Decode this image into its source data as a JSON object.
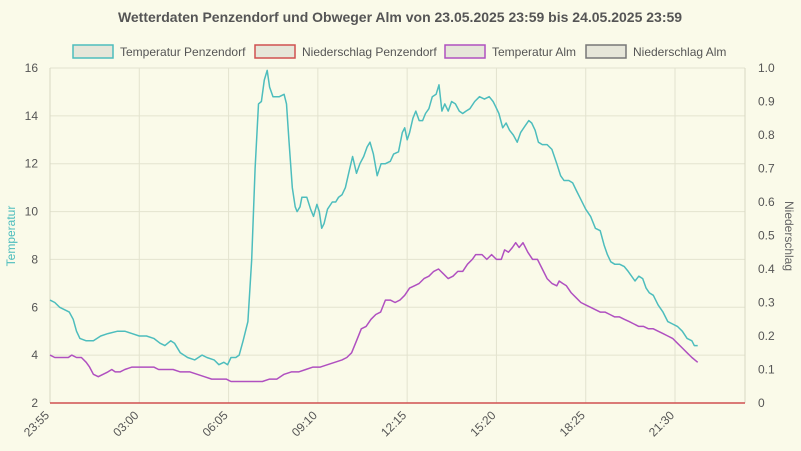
{
  "chart_data": {
    "type": "line",
    "title": "Wetterdaten Penzendorf und Obweger Alm von 23.05.2025 23:59 bis 24.05.2025 23:59",
    "ylabel_left": "Temperatur",
    "ylabel_right": "Niederschlag",
    "x_tick_labels": [
      "23:55",
      "03:00",
      "06:05",
      "09:10",
      "12:15",
      "15:20",
      "18:25",
      "21:30"
    ],
    "x_tick_minutes": [
      0,
      185,
      370,
      555,
      740,
      925,
      1110,
      1295
    ],
    "x_range_minutes": [
      0,
      1440
    ],
    "y_left_range": [
      2,
      16
    ],
    "y_left_ticks": [
      2,
      4,
      6,
      8,
      10,
      12,
      14,
      16
    ],
    "y_right_range": [
      0,
      1
    ],
    "y_right_ticks": [
      "0",
      "0.1",
      "0.2",
      "0.3",
      "0.4",
      "0.5",
      "0.6",
      "0.7",
      "0.8",
      "0.9",
      "1.0"
    ],
    "grid": true,
    "legend_position": "top",
    "series": [
      {
        "name": "Temperatur Penzendorf",
        "axis": "left",
        "color": "#4dbdbd",
        "fill": "#e6e6d9",
        "points": [
          [
            0,
            6.3
          ],
          [
            10,
            6.2
          ],
          [
            20,
            6.0
          ],
          [
            30,
            5.9
          ],
          [
            40,
            5.8
          ],
          [
            48,
            5.5
          ],
          [
            55,
            5.0
          ],
          [
            62,
            4.7
          ],
          [
            75,
            4.6
          ],
          [
            90,
            4.6
          ],
          [
            105,
            4.8
          ],
          [
            120,
            4.9
          ],
          [
            140,
            5.0
          ],
          [
            155,
            5.0
          ],
          [
            170,
            4.9
          ],
          [
            185,
            4.8
          ],
          [
            200,
            4.8
          ],
          [
            215,
            4.7
          ],
          [
            228,
            4.5
          ],
          [
            238,
            4.4
          ],
          [
            250,
            4.6
          ],
          [
            258,
            4.5
          ],
          [
            270,
            4.1
          ],
          [
            285,
            3.9
          ],
          [
            300,
            3.8
          ],
          [
            315,
            4.0
          ],
          [
            325,
            3.9
          ],
          [
            340,
            3.8
          ],
          [
            350,
            3.6
          ],
          [
            360,
            3.7
          ],
          [
            368,
            3.6
          ],
          [
            375,
            3.9
          ],
          [
            385,
            3.9
          ],
          [
            392,
            4.0
          ],
          [
            400,
            4.6
          ],
          [
            410,
            5.4
          ],
          [
            418,
            8.0
          ],
          [
            425,
            11.8
          ],
          [
            432,
            14.5
          ],
          [
            438,
            14.6
          ],
          [
            444,
            15.5
          ],
          [
            450,
            15.9
          ],
          [
            455,
            15.2
          ],
          [
            462,
            14.8
          ],
          [
            475,
            14.8
          ],
          [
            485,
            14.9
          ],
          [
            490,
            14.5
          ],
          [
            495,
            13.0
          ],
          [
            502,
            11.0
          ],
          [
            508,
            10.2
          ],
          [
            512,
            10.0
          ],
          [
            518,
            10.2
          ],
          [
            522,
            10.6
          ],
          [
            532,
            10.6
          ],
          [
            540,
            10.1
          ],
          [
            546,
            9.8
          ],
          [
            553,
            10.3
          ],
          [
            558,
            10.0
          ],
          [
            563,
            9.3
          ],
          [
            568,
            9.5
          ],
          [
            575,
            10.1
          ],
          [
            585,
            10.4
          ],
          [
            592,
            10.4
          ],
          [
            598,
            10.6
          ],
          [
            605,
            10.7
          ],
          [
            612,
            11.0
          ],
          [
            620,
            11.7
          ],
          [
            627,
            12.3
          ],
          [
            635,
            11.6
          ],
          [
            642,
            12.0
          ],
          [
            650,
            12.3
          ],
          [
            657,
            12.7
          ],
          [
            663,
            12.9
          ],
          [
            670,
            12.4
          ],
          [
            678,
            11.5
          ],
          [
            686,
            12.0
          ],
          [
            695,
            12.0
          ],
          [
            705,
            12.1
          ],
          [
            712,
            12.4
          ],
          [
            722,
            12.5
          ],
          [
            730,
            13.3
          ],
          [
            735,
            13.5
          ],
          [
            740,
            13.0
          ],
          [
            745,
            13.3
          ],
          [
            752,
            13.9
          ],
          [
            758,
            14.2
          ],
          [
            765,
            13.8
          ],
          [
            772,
            13.8
          ],
          [
            778,
            14.1
          ],
          [
            785,
            14.3
          ],
          [
            792,
            14.8
          ],
          [
            800,
            14.9
          ],
          [
            806,
            15.3
          ],
          [
            812,
            14.2
          ],
          [
            818,
            14.5
          ],
          [
            825,
            14.2
          ],
          [
            832,
            14.6
          ],
          [
            840,
            14.5
          ],
          [
            848,
            14.2
          ],
          [
            855,
            14.1
          ],
          [
            862,
            14.2
          ],
          [
            870,
            14.3
          ],
          [
            880,
            14.6
          ],
          [
            890,
            14.8
          ],
          [
            900,
            14.7
          ],
          [
            910,
            14.8
          ],
          [
            918,
            14.6
          ],
          [
            923,
            14.4
          ],
          [
            930,
            14.1
          ],
          [
            938,
            13.5
          ],
          [
            945,
            13.7
          ],
          [
            952,
            13.4
          ],
          [
            960,
            13.2
          ],
          [
            968,
            12.9
          ],
          [
            975,
            13.3
          ],
          [
            985,
            13.6
          ],
          [
            992,
            13.8
          ],
          [
            998,
            13.7
          ],
          [
            1005,
            13.4
          ],
          [
            1012,
            12.9
          ],
          [
            1020,
            12.8
          ],
          [
            1030,
            12.8
          ],
          [
            1040,
            12.6
          ],
          [
            1050,
            12.0
          ],
          [
            1058,
            11.5
          ],
          [
            1065,
            11.3
          ],
          [
            1075,
            11.3
          ],
          [
            1083,
            11.2
          ],
          [
            1090,
            10.9
          ],
          [
            1100,
            10.5
          ],
          [
            1110,
            10.1
          ],
          [
            1120,
            9.8
          ],
          [
            1130,
            9.3
          ],
          [
            1140,
            9.2
          ],
          [
            1148,
            8.6
          ],
          [
            1155,
            8.2
          ],
          [
            1162,
            7.9
          ],
          [
            1170,
            7.8
          ],
          [
            1180,
            7.8
          ],
          [
            1190,
            7.7
          ],
          [
            1198,
            7.5
          ],
          [
            1205,
            7.3
          ],
          [
            1212,
            7.1
          ],
          [
            1220,
            7.3
          ],
          [
            1228,
            7.2
          ],
          [
            1235,
            6.8
          ],
          [
            1242,
            6.6
          ],
          [
            1250,
            6.5
          ],
          [
            1260,
            6.1
          ],
          [
            1270,
            5.8
          ],
          [
            1280,
            5.4
          ],
          [
            1290,
            5.3
          ],
          [
            1300,
            5.2
          ],
          [
            1310,
            5.0
          ],
          [
            1320,
            4.7
          ],
          [
            1330,
            4.6
          ],
          [
            1335,
            4.4
          ],
          [
            1342,
            4.4
          ]
        ]
      },
      {
        "name": "Niederschlag Penzendorf",
        "axis": "right",
        "color": "#d05050",
        "fill": "#e6e6d9",
        "points": [
          [
            0,
            0
          ],
          [
            1440,
            0
          ]
        ]
      },
      {
        "name": "Temperatur Alm",
        "axis": "left",
        "color": "#b050c0",
        "fill": "#e6e6d9",
        "points": [
          [
            0,
            4.0
          ],
          [
            10,
            3.9
          ],
          [
            25,
            3.9
          ],
          [
            38,
            3.9
          ],
          [
            45,
            4.0
          ],
          [
            55,
            3.9
          ],
          [
            65,
            3.9
          ],
          [
            75,
            3.7
          ],
          [
            82,
            3.5
          ],
          [
            90,
            3.2
          ],
          [
            100,
            3.1
          ],
          [
            110,
            3.2
          ],
          [
            120,
            3.3
          ],
          [
            128,
            3.4
          ],
          [
            135,
            3.3
          ],
          [
            145,
            3.3
          ],
          [
            155,
            3.4
          ],
          [
            170,
            3.5
          ],
          [
            185,
            3.5
          ],
          [
            200,
            3.5
          ],
          [
            215,
            3.5
          ],
          [
            225,
            3.4
          ],
          [
            240,
            3.4
          ],
          [
            255,
            3.4
          ],
          [
            270,
            3.3
          ],
          [
            290,
            3.3
          ],
          [
            305,
            3.2
          ],
          [
            320,
            3.1
          ],
          [
            335,
            3.0
          ],
          [
            350,
            3.0
          ],
          [
            365,
            3.0
          ],
          [
            375,
            2.9
          ],
          [
            395,
            2.9
          ],
          [
            420,
            2.9
          ],
          [
            440,
            2.9
          ],
          [
            455,
            3.0
          ],
          [
            470,
            3.0
          ],
          [
            485,
            3.2
          ],
          [
            500,
            3.3
          ],
          [
            515,
            3.3
          ],
          [
            530,
            3.4
          ],
          [
            545,
            3.5
          ],
          [
            560,
            3.5
          ],
          [
            575,
            3.6
          ],
          [
            590,
            3.7
          ],
          [
            605,
            3.8
          ],
          [
            615,
            3.9
          ],
          [
            625,
            4.1
          ],
          [
            635,
            4.6
          ],
          [
            645,
            5.1
          ],
          [
            655,
            5.2
          ],
          [
            665,
            5.5
          ],
          [
            675,
            5.7
          ],
          [
            685,
            5.8
          ],
          [
            695,
            6.3
          ],
          [
            705,
            6.3
          ],
          [
            715,
            6.2
          ],
          [
            725,
            6.3
          ],
          [
            735,
            6.5
          ],
          [
            745,
            6.8
          ],
          [
            755,
            6.9
          ],
          [
            765,
            7.0
          ],
          [
            775,
            7.2
          ],
          [
            785,
            7.3
          ],
          [
            795,
            7.5
          ],
          [
            805,
            7.6
          ],
          [
            815,
            7.4
          ],
          [
            825,
            7.2
          ],
          [
            835,
            7.3
          ],
          [
            845,
            7.5
          ],
          [
            855,
            7.5
          ],
          [
            865,
            7.8
          ],
          [
            875,
            8.0
          ],
          [
            882,
            8.2
          ],
          [
            895,
            8.2
          ],
          [
            905,
            8.0
          ],
          [
            915,
            8.2
          ],
          [
            925,
            8.0
          ],
          [
            935,
            8.0
          ],
          [
            942,
            8.4
          ],
          [
            950,
            8.3
          ],
          [
            958,
            8.5
          ],
          [
            965,
            8.7
          ],
          [
            972,
            8.5
          ],
          [
            980,
            8.7
          ],
          [
            990,
            8.3
          ],
          [
            1000,
            8.0
          ],
          [
            1010,
            8.0
          ],
          [
            1020,
            7.6
          ],
          [
            1030,
            7.2
          ],
          [
            1040,
            7.0
          ],
          [
            1050,
            6.9
          ],
          [
            1055,
            7.1
          ],
          [
            1062,
            7.0
          ],
          [
            1070,
            6.9
          ],
          [
            1080,
            6.6
          ],
          [
            1090,
            6.4
          ],
          [
            1100,
            6.2
          ],
          [
            1110,
            6.1
          ],
          [
            1120,
            6.0
          ],
          [
            1130,
            5.9
          ],
          [
            1140,
            5.8
          ],
          [
            1150,
            5.8
          ],
          [
            1160,
            5.7
          ],
          [
            1170,
            5.6
          ],
          [
            1180,
            5.6
          ],
          [
            1190,
            5.5
          ],
          [
            1200,
            5.4
          ],
          [
            1210,
            5.3
          ],
          [
            1220,
            5.2
          ],
          [
            1230,
            5.2
          ],
          [
            1240,
            5.1
          ],
          [
            1250,
            5.1
          ],
          [
            1260,
            5.0
          ],
          [
            1270,
            4.9
          ],
          [
            1280,
            4.8
          ],
          [
            1290,
            4.7
          ],
          [
            1300,
            4.5
          ],
          [
            1310,
            4.3
          ],
          [
            1320,
            4.1
          ],
          [
            1330,
            3.9
          ],
          [
            1342,
            3.7
          ]
        ]
      },
      {
        "name": "Niederschlag Alm",
        "axis": "right",
        "color": "#777777",
        "fill": "#e6e6d9",
        "points": []
      }
    ]
  }
}
